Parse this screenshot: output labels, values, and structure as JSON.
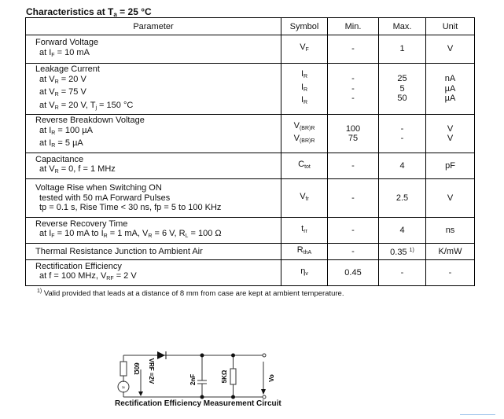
{
  "title": {
    "pre": "Characteristics at T",
    "sub": "a",
    "post": " = 25 °C"
  },
  "headers": [
    "Parameter",
    "Symbol",
    "Min.",
    "Max.",
    "Unit"
  ],
  "rows": [
    {
      "param": [
        [
          {
            "t": "Forward Voltage"
          }
        ],
        [
          {
            "t": "at I"
          },
          {
            "sub": "F"
          },
          {
            "t": " = 10 mA"
          }
        ]
      ],
      "symbol": [
        [
          {
            "t": "V"
          },
          {
            "sub": "F"
          }
        ]
      ],
      "min": [
        "-"
      ],
      "max": [
        "1"
      ],
      "unit": [
        "V"
      ]
    },
    {
      "param": [
        [
          {
            "t": "Leakage Current"
          }
        ],
        [
          {
            "t": "at V"
          },
          {
            "sub": "R"
          },
          {
            "t": " = 20 V"
          }
        ],
        [
          {
            "t": "at V"
          },
          {
            "sub": "R"
          },
          {
            "t": " = 75 V"
          }
        ],
        [
          {
            "t": "at V"
          },
          {
            "sub": "R"
          },
          {
            "t": " = 20 V, T"
          },
          {
            "sub": "j"
          },
          {
            "t": " = 150 °C"
          }
        ]
      ],
      "symbol": [
        [
          {
            "t": "I"
          },
          {
            "sub": "R"
          }
        ],
        [
          {
            "t": "I"
          },
          {
            "sub": "R"
          }
        ],
        [
          {
            "t": "I"
          },
          {
            "sub": "R"
          }
        ]
      ],
      "min": [
        "-",
        "-",
        "-"
      ],
      "max": [
        "25",
        "5",
        "50"
      ],
      "unit": [
        "nA",
        "µA",
        "µA"
      ]
    },
    {
      "param": [
        [
          {
            "t": "Reverse Breakdown Voltage"
          }
        ],
        [
          {
            "t": "at I"
          },
          {
            "sub": "R"
          },
          {
            "t": " = 100 µA"
          }
        ],
        [
          {
            "t": "at I"
          },
          {
            "sub": "R"
          },
          {
            "t": " = 5 µA"
          }
        ]
      ],
      "symbol": [
        [
          {
            "t": "V"
          },
          {
            "sub": "(BR)R"
          }
        ],
        [
          {
            "t": "V"
          },
          {
            "sub": "(BR)R"
          }
        ]
      ],
      "min": [
        "100",
        "75"
      ],
      "max": [
        "-",
        "-"
      ],
      "unit": [
        "V",
        "V"
      ]
    },
    {
      "param": [
        [
          {
            "t": "Capacitance"
          }
        ],
        [
          {
            "t": "at V"
          },
          {
            "sub": "R"
          },
          {
            "t": " = 0, f = 1 MHz"
          }
        ]
      ],
      "symbol": [
        [
          {
            "t": "C"
          },
          {
            "sub": "tot"
          }
        ]
      ],
      "min": [
        "-"
      ],
      "max": [
        "4"
      ],
      "unit": [
        "pF"
      ]
    },
    {
      "param": [
        [
          {
            "t": "Voltage Rise when Switching ON"
          }
        ],
        [
          {
            "t": "tested with 50 mA Forward Pulses"
          }
        ],
        [
          {
            "t": "tp = 0.1 s, Rise Time < 30 ns, fp = 5 to 100 KHz"
          }
        ]
      ],
      "symbol": [
        [
          {
            "t": "V"
          },
          {
            "sub": "fr"
          }
        ]
      ],
      "min": [
        "-"
      ],
      "max": [
        "2.5"
      ],
      "unit": [
        "V"
      ]
    },
    {
      "param": [
        [
          {
            "t": "Reverse Recovery Time"
          }
        ],
        [
          {
            "t": "at I"
          },
          {
            "sub": "F"
          },
          {
            "t": " = 10 mA to I"
          },
          {
            "sub": "R"
          },
          {
            "t": " = 1 mA, V"
          },
          {
            "sub": "R"
          },
          {
            "t": " = 6 V, R"
          },
          {
            "sub": "L"
          },
          {
            "t": " = 100 Ω"
          }
        ]
      ],
      "symbol": [
        [
          {
            "t": "t"
          },
          {
            "sub": "rr"
          }
        ]
      ],
      "min": [
        "-"
      ],
      "max": [
        "4"
      ],
      "unit": [
        "ns"
      ]
    },
    {
      "param": [
        [
          {
            "t": "Thermal Resistance Junction to Ambient Air"
          }
        ]
      ],
      "symbol": [
        [
          {
            "t": "R"
          },
          {
            "sub": "thA"
          }
        ]
      ],
      "min": [
        "-"
      ],
      "max": [
        [
          {
            "t": "0.35 "
          },
          {
            "sup": "1)"
          }
        ]
      ],
      "unit": [
        "K/mW"
      ]
    },
    {
      "param": [
        [
          {
            "t": "Rectification Efficiency"
          }
        ],
        [
          {
            "t": "at f = 100 MHz, V"
          },
          {
            "sub": "RF"
          },
          {
            "t": " = 2 V"
          }
        ]
      ],
      "symbol": [
        [
          {
            "t": "η"
          },
          {
            "sub": "v"
          }
        ]
      ],
      "min": [
        "0.45"
      ],
      "max": [
        "-"
      ],
      "unit": [
        "-"
      ]
    }
  ],
  "footnote": {
    "mark": "1)",
    "text": " Valid provided that leads at a distance of 8 mm from case are kept at ambient temperature."
  },
  "circuit": {
    "caption": "Rectification Efficiency Measurement Circuit",
    "resistor_source": "60Ω",
    "vrf": "VRF =2V",
    "capacitor": "2nF",
    "resistor_load": "5KΩ",
    "vo": "Vo",
    "source_symbol": "≈"
  }
}
